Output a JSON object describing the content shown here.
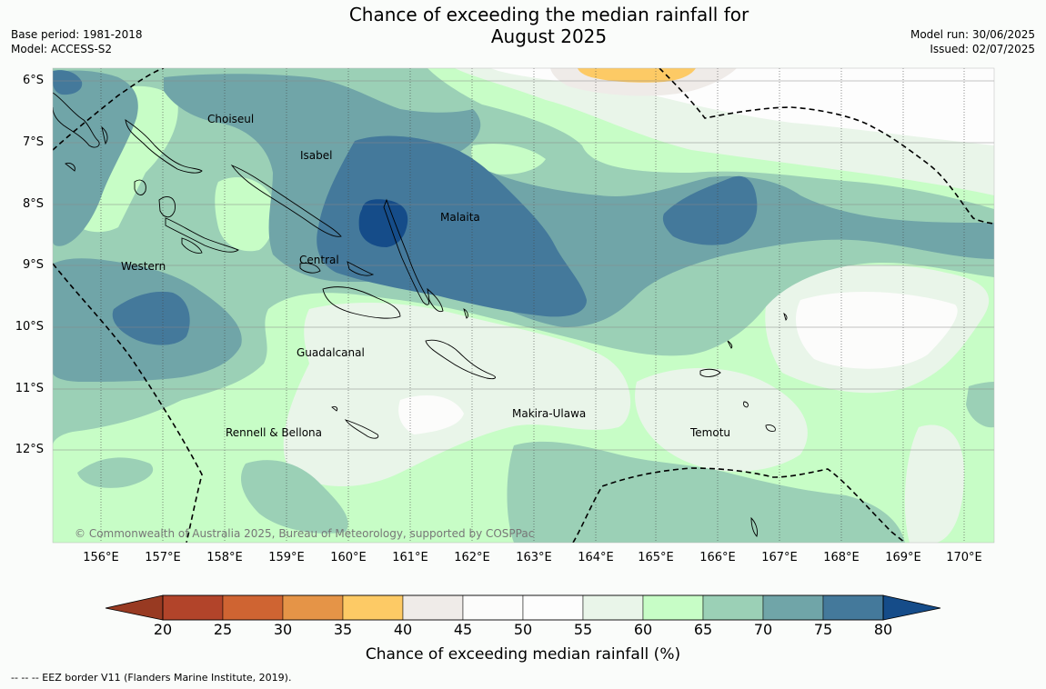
{
  "title_line1": "Chance of exceeding the median rainfall for",
  "title_line2": "August 2025",
  "base_period": "Base period: 1981-2018",
  "model": "Model: ACCESS-S2",
  "model_run": "Model run: 30/06/2025",
  "issued": "Issued: 02/07/2025",
  "copyright": "© Commonwealth of Australia 2025, Bureau of Meteorology, supported by COSPPac",
  "lat_labels": [
    "6°S",
    "7°S",
    "8°S",
    "9°S",
    "10°S",
    "11°S",
    "12°S"
  ],
  "lon_labels": [
    "156°E",
    "157°E",
    "158°E",
    "159°E",
    "160°E",
    "161°E",
    "162°E",
    "163°E",
    "164°E",
    "165°E",
    "166°E",
    "167°E",
    "168°E",
    "169°E",
    "170°E"
  ],
  "regions": {
    "choiseul": "Choiseul",
    "isabel": "Isabel",
    "malaita": "Malaita",
    "western": "Western",
    "central": "Central",
    "guadalcanal": "Guadalcanal",
    "makira_ulawa": "Makira-Ulawa",
    "temotu": "Temotu",
    "rennell_bellona": "Rennell & Bellona"
  },
  "colorbar": {
    "ticks": [
      "20",
      "25",
      "30",
      "35",
      "40",
      "45",
      "50",
      "55",
      "60",
      "65",
      "70",
      "75",
      "80"
    ],
    "colors": [
      "#b2442a",
      "#cf6432",
      "#e59447",
      "#fdca65",
      "#efebe8",
      "#fcfcfb",
      "#fdfdfd",
      "#e9f5e9",
      "#c7fdc6",
      "#9bd0b6",
      "#70a5a8",
      "#44799b"
    ],
    "low_color": "#983a22",
    "high_color": "#154c89",
    "label": "Chance of exceeding median rainfall (%)"
  },
  "footer": "-- -- -- EEZ border V11 (Flanders Marine Institute, 2019)."
}
